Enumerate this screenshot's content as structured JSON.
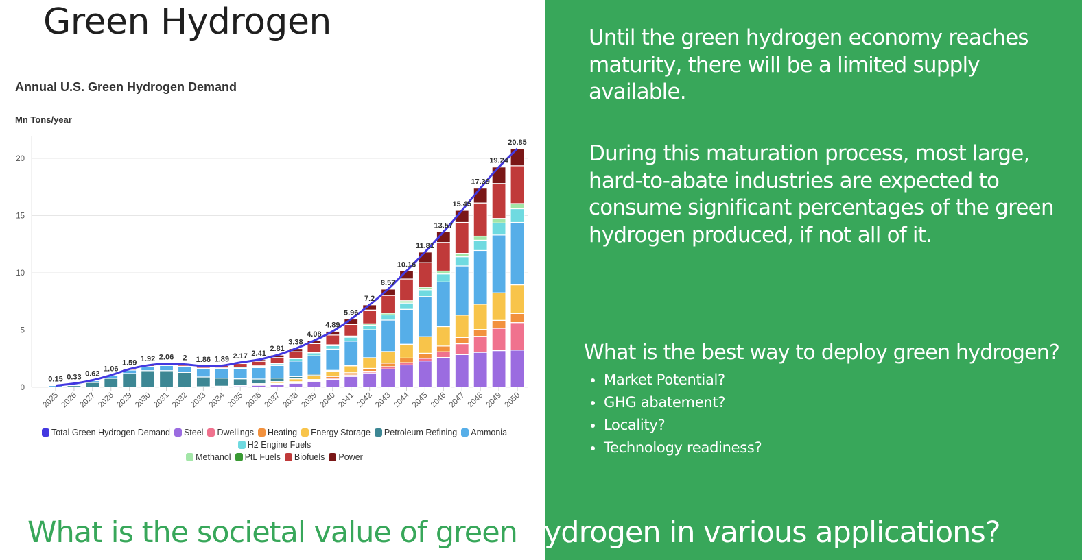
{
  "slide": {
    "title": "Green Hydrogen",
    "bg_right": "#38a75a",
    "paragraph1": "Until the green hydrogen economy reaches maturity, there will be a limited supply available.",
    "paragraph2": "During this maturation process, most large, hard-to-abate industries are expected to consume significant percentages of the green hydrogen produced, if not all of it.",
    "question_heading": "What is the best way to deploy green hydrogen?",
    "questions": [
      "Market Potential?",
      "GHG abatement?",
      "Locality?",
      "Technology readiness?"
    ],
    "bottom_question_part1": "What is the societal value of green ",
    "bottom_question_part2": "hydrogen in various applications?"
  },
  "chart_data": {
    "type": "bar",
    "stacked": true,
    "title": "Annual U.S. Green Hydrogen Demand",
    "ylabel": "Mn Tons/year",
    "xlabel": "",
    "ylim": [
      0,
      22
    ],
    "yticks": [
      0,
      5,
      10,
      15,
      20
    ],
    "grid": true,
    "legend_position": "bottom",
    "categories": [
      "2025",
      "2026",
      "2027",
      "2028",
      "2029",
      "2030",
      "2031",
      "2032",
      "2033",
      "2034",
      "2035",
      "2036",
      "2037",
      "2038",
      "2039",
      "2040",
      "2041",
      "2042",
      "2043",
      "2044",
      "2045",
      "2046",
      "2047",
      "2048",
      "2049",
      "2050"
    ],
    "totals": [
      0.15,
      0.33,
      0.62,
      1.06,
      1.59,
      1.92,
      2.06,
      2.0,
      1.86,
      1.89,
      2.17,
      2.41,
      2.81,
      3.38,
      4.08,
      4.89,
      5.96,
      7.2,
      8.57,
      10.16,
      11.81,
      13.57,
      15.45,
      17.39,
      19.24,
      20.85
    ],
    "line_series": {
      "name": "Total Green Hydrogen Demand",
      "color": "#4338e0"
    },
    "series": [
      {
        "name": "Steel",
        "color": "#9b6ce0",
        "values": [
          0,
          0,
          0,
          0,
          0,
          0,
          0,
          0,
          0.05,
          0.08,
          0.12,
          0.18,
          0.25,
          0.35,
          0.5,
          0.7,
          0.95,
          1.25,
          1.6,
          1.95,
          2.3,
          2.6,
          2.85,
          3.05,
          3.2,
          3.25
        ]
      },
      {
        "name": "Dwellings",
        "color": "#f0728e",
        "values": [
          0,
          0,
          0,
          0,
          0,
          0,
          0,
          0,
          0,
          0,
          0,
          0.02,
          0.04,
          0.06,
          0.08,
          0.1,
          0.12,
          0.15,
          0.2,
          0.2,
          0.22,
          0.5,
          0.95,
          1.4,
          1.95,
          2.4
        ]
      },
      {
        "name": "Heating",
        "color": "#f2913d",
        "values": [
          0,
          0,
          0,
          0,
          0,
          0,
          0,
          0,
          0,
          0,
          0.02,
          0.04,
          0.06,
          0.08,
          0.1,
          0.15,
          0.2,
          0.25,
          0.3,
          0.4,
          0.45,
          0.5,
          0.55,
          0.6,
          0.7,
          0.8
        ]
      },
      {
        "name": "Energy Storage",
        "color": "#f8c44a",
        "values": [
          0,
          0,
          0,
          0,
          0,
          0,
          0,
          0,
          0,
          0.02,
          0.05,
          0.08,
          0.15,
          0.25,
          0.35,
          0.45,
          0.6,
          0.9,
          1.0,
          1.2,
          1.45,
          1.7,
          1.95,
          2.2,
          2.4,
          2.5
        ]
      },
      {
        "name": "Petroleum Refining",
        "color": "#3d8794",
        "values": [
          0,
          0.15,
          0.42,
          0.78,
          1.2,
          1.45,
          1.45,
          1.3,
          0.85,
          0.7,
          0.55,
          0.4,
          0.3,
          0.2,
          0.12,
          0.08,
          0.05,
          0.03,
          0.02,
          0.01,
          0,
          0,
          0,
          0,
          0,
          0
        ]
      },
      {
        "name": "Ammonia",
        "color": "#56aee8",
        "values": [
          0.15,
          0.15,
          0.15,
          0.22,
          0.3,
          0.35,
          0.45,
          0.5,
          0.7,
          0.8,
          0.9,
          1.0,
          1.1,
          1.35,
          1.6,
          1.85,
          2.1,
          2.45,
          2.75,
          3.05,
          3.5,
          3.9,
          4.3,
          4.7,
          5.05,
          5.45
        ]
      },
      {
        "name": "H2 Engine Fuels",
        "color": "#6fdae0",
        "values": [
          0,
          0,
          0,
          0,
          0,
          0.02,
          0.03,
          0.04,
          0.06,
          0.08,
          0.1,
          0.12,
          0.15,
          0.2,
          0.25,
          0.3,
          0.35,
          0.4,
          0.45,
          0.55,
          0.6,
          0.7,
          0.8,
          0.9,
          1.05,
          1.2
        ]
      },
      {
        "name": "Methanol",
        "color": "#a3e6a8",
        "values": [
          0,
          0,
          0,
          0,
          0,
          0,
          0,
          0,
          0.01,
          0.01,
          0.02,
          0.03,
          0.04,
          0.05,
          0.06,
          0.08,
          0.1,
          0.12,
          0.15,
          0.2,
          0.22,
          0.25,
          0.3,
          0.35,
          0.4,
          0.45
        ]
      },
      {
        "name": "PtL Fuels",
        "color": "#3a9a34",
        "values": [
          0,
          0,
          0,
          0,
          0,
          0,
          0,
          0,
          0,
          0,
          0,
          0,
          0,
          0,
          0,
          0,
          0,
          0,
          0,
          0,
          0,
          0,
          0,
          0,
          0,
          0
        ]
      },
      {
        "name": "Biofuels",
        "color": "#c03a3a",
        "values": [
          0,
          0.03,
          0.05,
          0.06,
          0.09,
          0.1,
          0.13,
          0.16,
          0.19,
          0.2,
          0.31,
          0.4,
          0.5,
          0.57,
          0.75,
          0.85,
          1.02,
          1.2,
          1.55,
          1.9,
          2.15,
          2.5,
          2.7,
          2.9,
          3.05,
          3.3
        ]
      },
      {
        "name": "Power",
        "color": "#7a1717",
        "values": [
          0,
          0,
          0,
          0,
          0,
          0,
          0,
          0,
          0,
          0,
          0.1,
          0.14,
          0.22,
          0.27,
          0.27,
          0.33,
          0.47,
          0.45,
          0.55,
          0.7,
          0.92,
          0.92,
          1.05,
          1.29,
          1.44,
          1.5
        ]
      }
    ]
  }
}
